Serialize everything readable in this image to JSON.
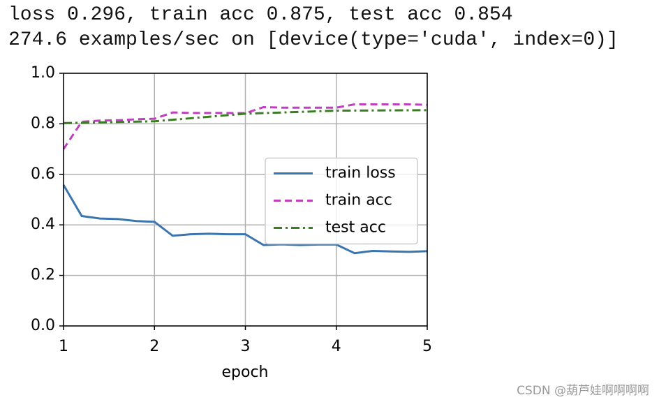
{
  "output_lines": [
    "loss 0.296, train acc 0.875, test acc 0.854",
    "274.6 examples/sec on [device(type='cuda', index=0)]"
  ],
  "watermark": "CSDN @葫芦娃啊啊啊啊",
  "chart_data": {
    "type": "line",
    "xlabel": "epoch",
    "xlim": [
      1,
      5
    ],
    "ylim": [
      0,
      1
    ],
    "xticks": [
      1,
      2,
      3,
      4,
      5
    ],
    "yticks": [
      {
        "value": 0,
        "label": "0.0"
      },
      0.2,
      0.4,
      0.6,
      0.8,
      {
        "value": 1,
        "label": "1.0"
      }
    ],
    "grid": true,
    "legend": "center right",
    "series": [
      {
        "name": "train loss",
        "color": "#3b75af",
        "linestyle": "solid",
        "x": [
          1,
          1.2,
          1.4,
          1.6,
          1.8,
          2,
          2.2,
          2.4,
          2.6,
          2.8,
          3,
          3.2,
          3.4,
          3.6,
          3.8,
          4,
          4.2,
          4.4,
          4.6,
          4.8,
          5
        ],
        "values": [
          0.558,
          0.435,
          0.425,
          0.423,
          0.415,
          0.412,
          0.357,
          0.363,
          0.365,
          0.363,
          0.363,
          0.32,
          0.323,
          0.32,
          0.322,
          0.322,
          0.288,
          0.297,
          0.295,
          0.293,
          0.296
        ]
      },
      {
        "name": "train acc",
        "color": "#bf3fbf",
        "linestyle": "dashed",
        "x": [
          1,
          1.2,
          1.4,
          1.6,
          1.8,
          2,
          2.2,
          2.4,
          2.6,
          2.8,
          3,
          3.2,
          3.4,
          3.6,
          3.8,
          4,
          4.2,
          4.4,
          4.6,
          4.8,
          5
        ],
        "values": [
          0.7,
          0.808,
          0.813,
          0.814,
          0.818,
          0.82,
          0.845,
          0.843,
          0.843,
          0.843,
          0.842,
          0.866,
          0.864,
          0.864,
          0.864,
          0.864,
          0.877,
          0.877,
          0.877,
          0.877,
          0.875
        ]
      },
      {
        "name": "test acc",
        "color": "#3a7d22",
        "linestyle": "dashdot",
        "x": [
          1,
          2,
          3,
          4,
          5
        ],
        "values": [
          0.803,
          0.81,
          0.84,
          0.852,
          0.854
        ]
      }
    ]
  }
}
